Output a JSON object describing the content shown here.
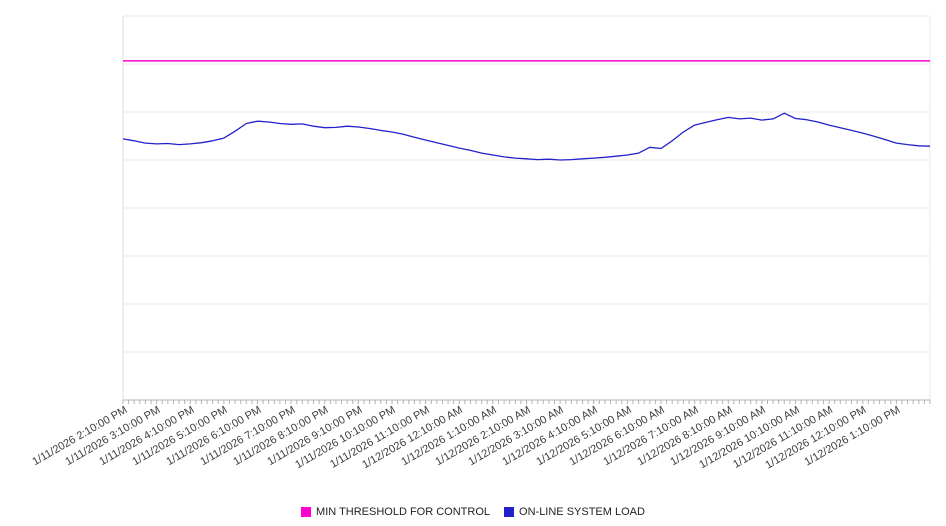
{
  "chart_data": {
    "type": "line",
    "title": "",
    "legend_position": "bottom",
    "grid": true,
    "y_axis_labels_visible": false,
    "ylim": [
      0,
      100
    ],
    "y_gridline_step": 12.5,
    "x_range_hours": 24,
    "x_tick_labels": [
      "1/11/2026 2:10:00 PM",
      "1/11/2026 3:10:00 PM",
      "1/11/2026 4:10:00 PM",
      "1/11/2026 5:10:00 PM",
      "1/11/2026 6:10:00 PM",
      "1/11/2026 7:10:00 PM",
      "1/11/2026 8:10:00 PM",
      "1/11/2026 9:10:00 PM",
      "1/11/2026 10:10:00 PM",
      "1/11/2026 11:10:00 PM",
      "1/12/2026 12:10:00 AM",
      "1/12/2026 1:10:00 AM",
      "1/12/2026 2:10:00 AM",
      "1/12/2026 3:10:00 AM",
      "1/12/2026 4:10:00 AM",
      "1/12/2026 5:10:00 AM",
      "1/12/2026 6:10:00 AM",
      "1/12/2026 7:10:00 AM",
      "1/12/2026 8:10:00 AM",
      "1/12/2026 9:10:00 AM",
      "1/12/2026 10:10:00 AM",
      "1/12/2026 11:10:00 AM",
      "1/12/2026 12:10:00 PM",
      "1/12/2026 1:10:00 PM"
    ],
    "series": [
      {
        "name": "MIN THRESHOLD FOR CONTROL",
        "type": "threshold",
        "color": "#ff00cc",
        "value": 88.3
      },
      {
        "name": "ON-LINE SYSTEM LOAD",
        "type": "line",
        "color": "#2222cc",
        "interval_minutes": 20,
        "values": [
          68.0,
          67.5,
          66.9,
          66.7,
          66.8,
          66.5,
          66.7,
          67.0,
          67.5,
          68.2,
          70.0,
          72.0,
          72.6,
          72.4,
          72.0,
          71.8,
          71.9,
          71.3,
          70.9,
          71.0,
          71.3,
          71.1,
          70.7,
          70.2,
          69.8,
          69.2,
          68.4,
          67.7,
          67.0,
          66.3,
          65.6,
          65.0,
          64.3,
          63.8,
          63.3,
          63.0,
          62.8,
          62.6,
          62.7,
          62.5,
          62.6,
          62.8,
          63.0,
          63.2,
          63.5,
          63.8,
          64.3,
          65.8,
          65.5,
          67.5,
          69.8,
          71.6,
          72.3,
          73.0,
          73.6,
          73.2,
          73.4,
          72.9,
          73.2,
          74.7,
          73.3,
          73.0,
          72.4,
          71.6,
          70.9,
          70.2,
          69.5,
          68.7,
          67.8,
          66.9,
          66.5,
          66.2,
          66.1
        ]
      }
    ],
    "colors": {
      "gridline": "#e8e8e8",
      "axis": "#b3b3b3",
      "plot_border": "#dcdcdc",
      "label_text": "#3d3d3d"
    }
  }
}
